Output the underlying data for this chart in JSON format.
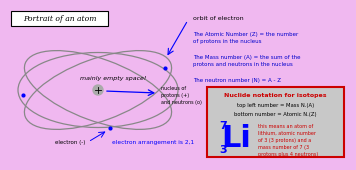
{
  "title": "Portrait of an atom",
  "bg_color": "#f0b8f0",
  "orbit_label": "orbit of electron",
  "atomic_num_text": "The Atomic Number (Z) = the number\nof protons in the nucleus",
  "mass_num_text": "The Mass number (A) = the sum of the\nprotons and neutrons in the nucleus",
  "neutron_num_text": "The neutron number (N) = A - Z",
  "nuclide_title": "Nuclide notation for isotopes",
  "nuclide_line1": "top left number = Mass N.(A)",
  "nuclide_line2": "bottom number = Atomic N.(Z)",
  "nuclide_desc": "this means an atom of\nlithium, atomic number\nof 3 (3 protons) and a\nmass number of 7 (3\nprotons plus 4 neutrons)",
  "li_symbol": "Li",
  "li_mass": "7",
  "li_atomic": "3",
  "empty_space_text": "mainly empty space!",
  "nucleus_text": "nucleus of\nprotons (+)\nand neutrons (o)",
  "electron_text": "electron (-)",
  "arrangement_text": "electron arrangement is 2,1",
  "text_color_blue": "#0000cc",
  "text_color_red": "#cc0000",
  "nuclide_box_color": "#c8c8c8",
  "nuclide_border_color": "#cc0000",
  "orbit_color": "#888888",
  "nucleus_color": "#aaaaaa"
}
